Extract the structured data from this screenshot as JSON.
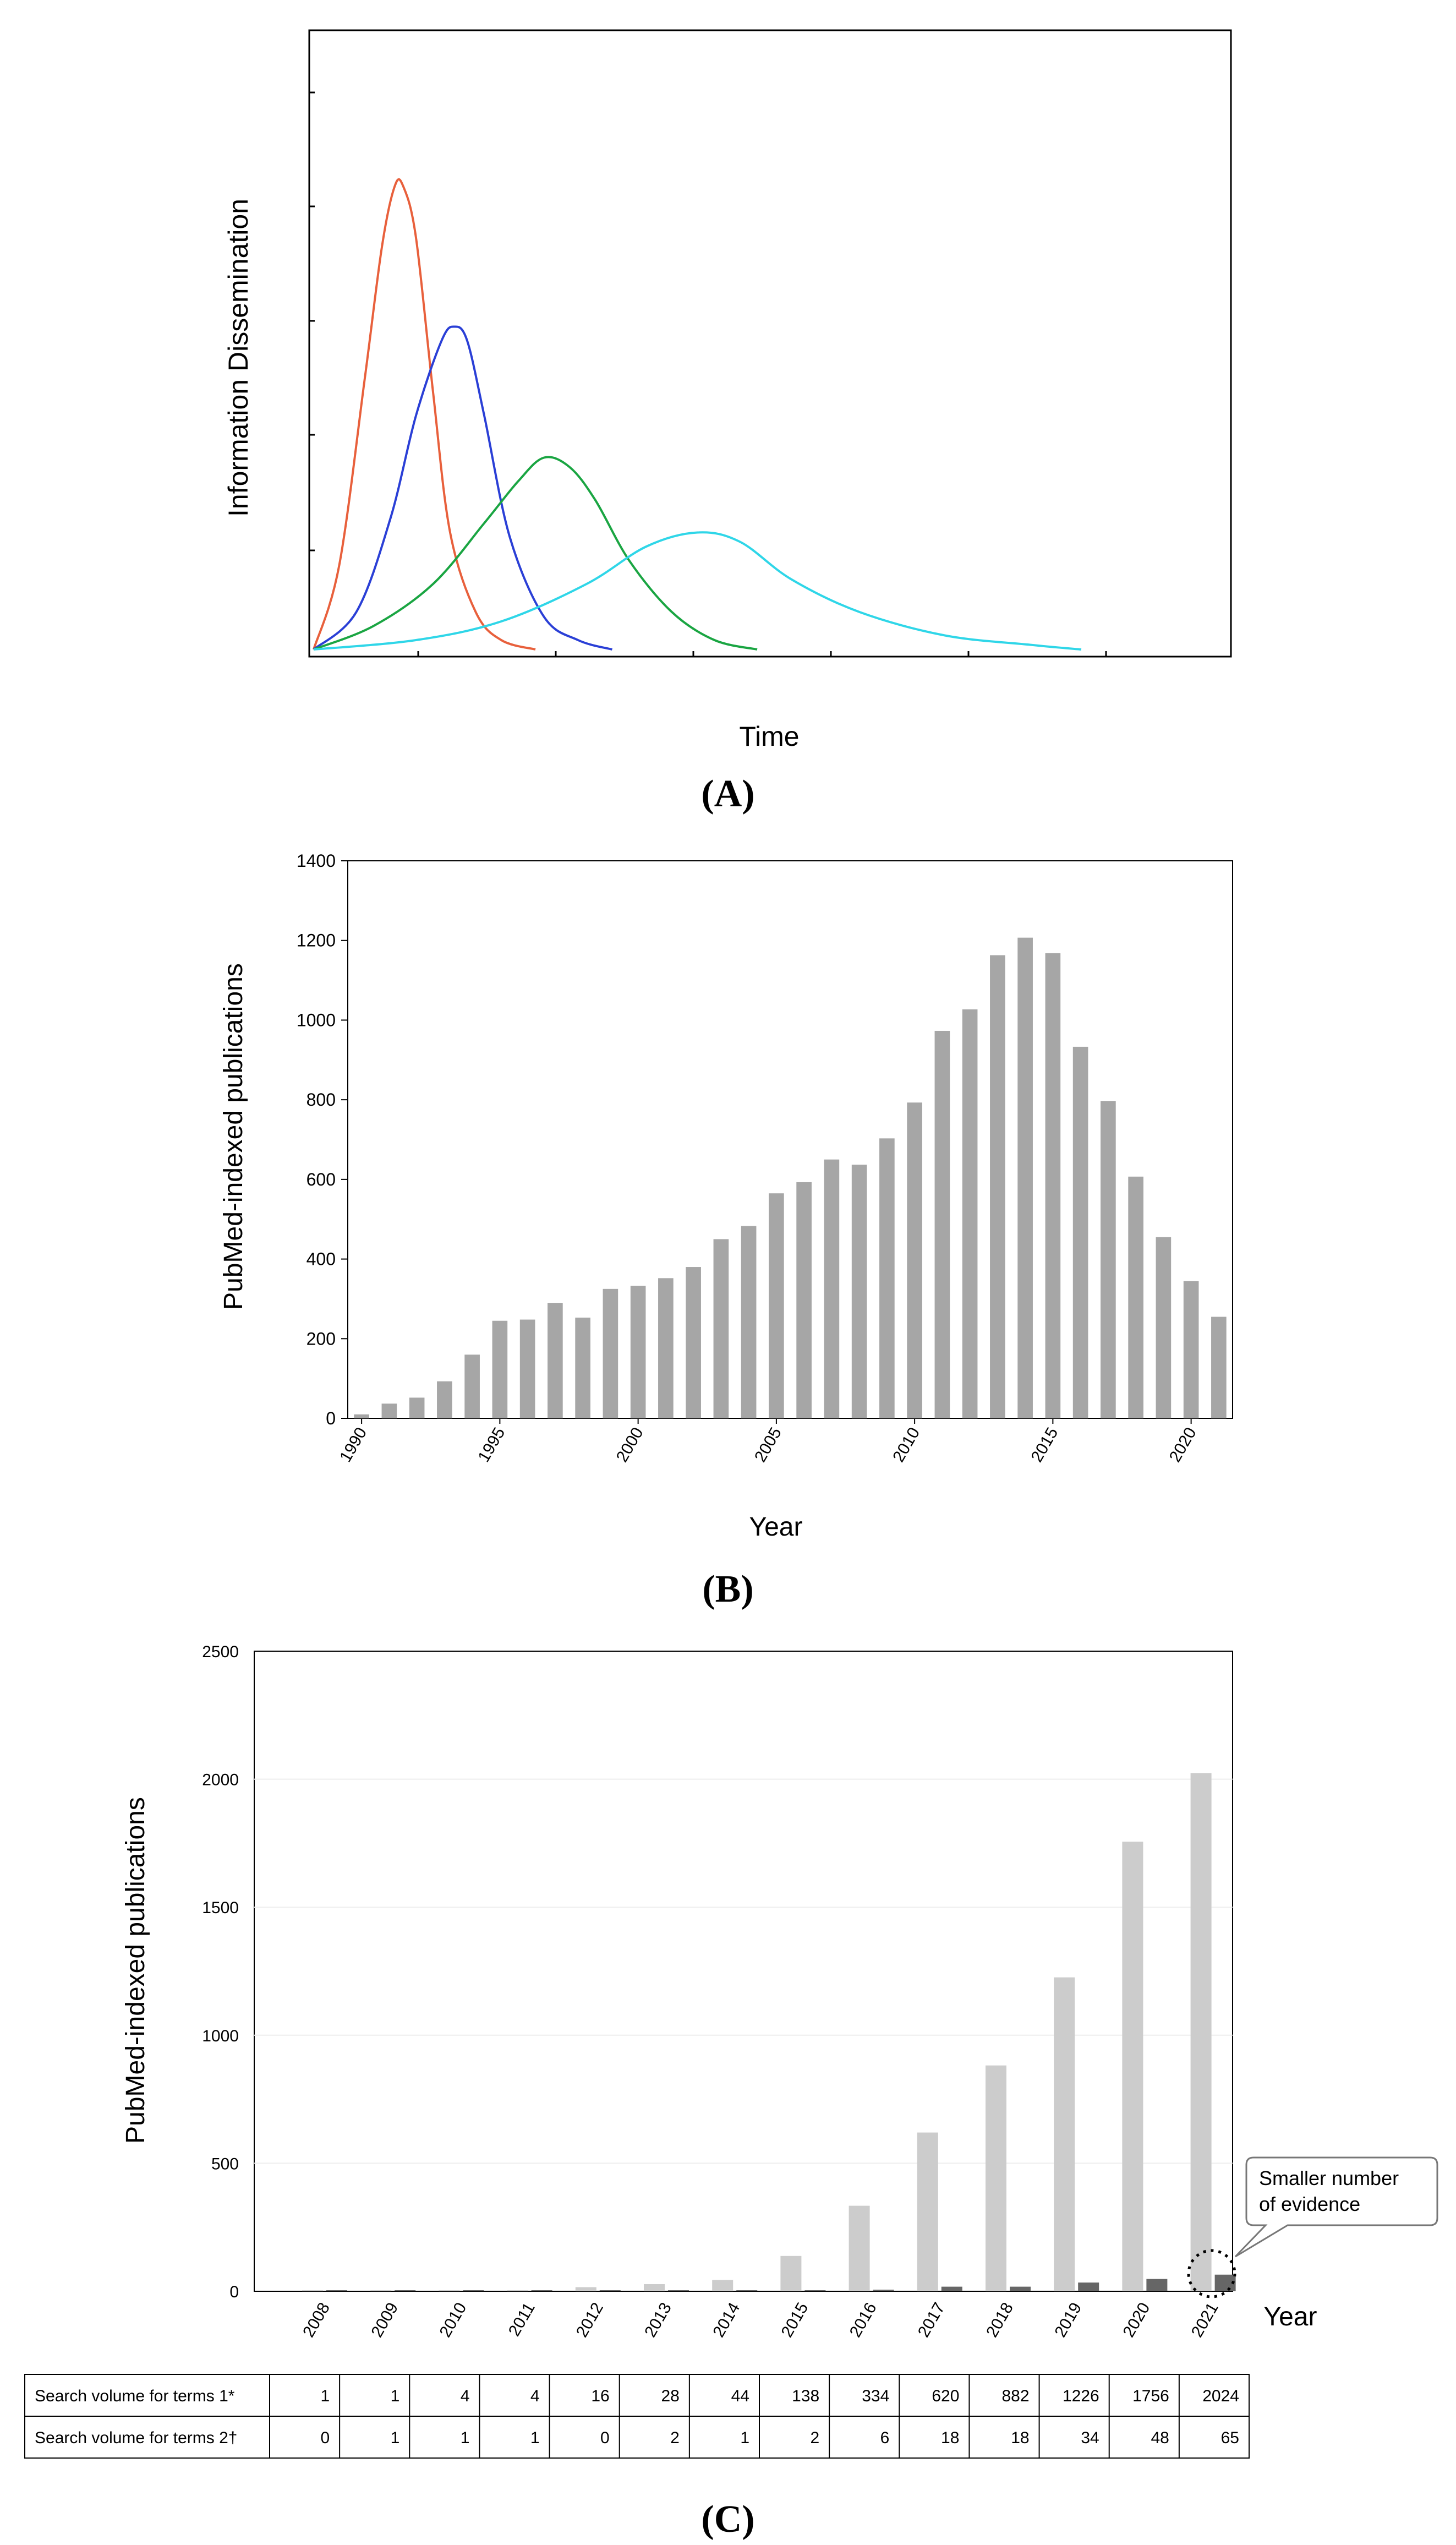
{
  "chart_data": [
    {
      "panel": "(A)",
      "type": "line",
      "xlabel": "Time",
      "ylabel": "Information Dissemination",
      "series": [
        {
          "color": "#e8603c",
          "x": [
            0.0,
            0.03,
            0.06,
            0.08,
            0.095,
            0.105,
            0.12,
            0.14,
            0.16,
            0.19,
            0.22,
            0.26
          ],
          "y": [
            0.0,
            0.18,
            0.58,
            0.86,
            0.99,
            0.99,
            0.88,
            0.55,
            0.25,
            0.08,
            0.02,
            0.0
          ]
        },
        {
          "color": "#2a3fd6",
          "x": [
            0.0,
            0.05,
            0.09,
            0.12,
            0.15,
            0.165,
            0.18,
            0.2,
            0.23,
            0.27,
            0.31,
            0.35
          ],
          "y": [
            0.0,
            0.08,
            0.28,
            0.5,
            0.66,
            0.69,
            0.66,
            0.5,
            0.24,
            0.07,
            0.02,
            0.0
          ]
        },
        {
          "color": "#1aa542",
          "x": [
            0.0,
            0.07,
            0.14,
            0.2,
            0.24,
            0.27,
            0.3,
            0.33,
            0.37,
            0.42,
            0.47,
            0.52
          ],
          "y": [
            0.0,
            0.05,
            0.14,
            0.27,
            0.36,
            0.41,
            0.39,
            0.32,
            0.19,
            0.08,
            0.02,
            0.0
          ]
        },
        {
          "color": "#2fd6e8",
          "x": [
            0.0,
            0.12,
            0.22,
            0.32,
            0.39,
            0.45,
            0.5,
            0.56,
            0.64,
            0.74,
            0.84,
            0.9
          ],
          "y": [
            0.0,
            0.02,
            0.06,
            0.14,
            0.22,
            0.25,
            0.23,
            0.15,
            0.08,
            0.03,
            0.01,
            0.0
          ]
        }
      ]
    },
    {
      "panel": "(B)",
      "type": "bar",
      "xlabel": "Year",
      "ylabel": "PubMed-indexed publications",
      "ylim": [
        0,
        1400
      ],
      "yticks": [
        0,
        200,
        400,
        600,
        800,
        1000,
        1200,
        1400
      ],
      "xtick_labels": [
        "1990",
        "1995",
        "2000",
        "2005",
        "2010",
        "2015",
        "2020"
      ],
      "categories": [
        1990,
        1991,
        1992,
        1993,
        1994,
        1995,
        1996,
        1997,
        1998,
        1999,
        2000,
        2001,
        2002,
        2003,
        2004,
        2005,
        2006,
        2007,
        2008,
        2009,
        2010,
        2011,
        2012,
        2013,
        2014,
        2015,
        2016,
        2017,
        2018,
        2019,
        2020,
        2021
      ],
      "values": [
        10,
        37,
        52,
        93,
        160,
        245,
        248,
        290,
        253,
        325,
        333,
        352,
        380,
        450,
        483,
        565,
        593,
        650,
        637,
        703,
        793,
        973,
        1027,
        1163,
        1207,
        1168,
        933,
        797,
        607,
        455,
        345,
        255
      ]
    },
    {
      "panel": "(C)",
      "type": "bar",
      "xlabel": "Year",
      "ylabel": "PubMed-indexed publications",
      "ylim": [
        0,
        2500
      ],
      "yticks": [
        0,
        500,
        1000,
        1500,
        2000,
        2500
      ],
      "categories": [
        "2008",
        "2009",
        "2010",
        "2011",
        "2012",
        "2013",
        "2014",
        "2015",
        "2016",
        "2017",
        "2018",
        "2019",
        "2020",
        "2021"
      ],
      "series": [
        {
          "name": "Search volume for terms 1*",
          "color": "#cccccc",
          "values": [
            1,
            1,
            4,
            4,
            16,
            28,
            44,
            138,
            334,
            620,
            882,
            1226,
            1756,
            2024
          ]
        },
        {
          "name": "Search volume for terms 2†",
          "color": "#666666",
          "values": [
            0,
            1,
            1,
            1,
            0,
            2,
            1,
            2,
            6,
            18,
            18,
            34,
            48,
            65
          ]
        }
      ],
      "annotation": [
        "Smaller number",
        "of evidence"
      ]
    }
  ]
}
